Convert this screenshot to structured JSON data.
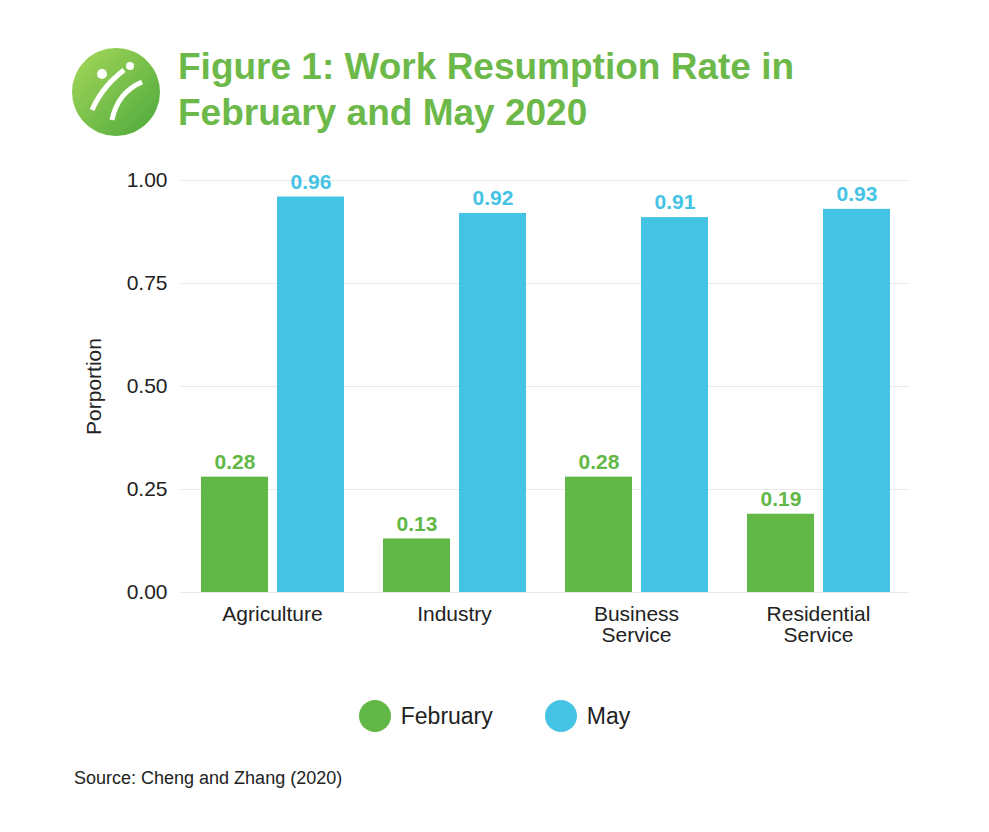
{
  "chart_data": {
    "type": "bar",
    "title": "Figure 1: Work Resumption Rate in February and May 2020",
    "categories": [
      "Agriculture",
      "Industry",
      "Business Service",
      "Residential Service"
    ],
    "series": [
      {
        "name": "February",
        "color": "#62b847",
        "values": [
          0.28,
          0.13,
          0.28,
          0.19
        ]
      },
      {
        "name": "May",
        "color": "#45c3e4",
        "values": [
          0.96,
          0.92,
          0.91,
          0.93
        ]
      }
    ],
    "ylabel": "Porportion",
    "ylim": [
      0,
      1
    ],
    "yticks": [
      {
        "value": 0,
        "label": "0.00"
      },
      0.25,
      {
        "value": 0.5,
        "label": "0.50"
      },
      0.75,
      {
        "value": 1,
        "label": "1.00"
      }
    ],
    "grid": true,
    "data_labels": true,
    "legend": "bottom",
    "caption": "Source: Cheng and Zhang (2020)"
  }
}
